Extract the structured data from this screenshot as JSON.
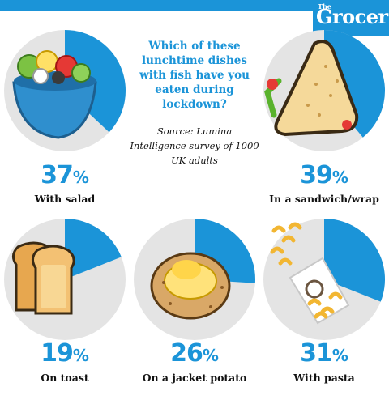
{
  "brand": {
    "the": "The",
    "name": "Grocer"
  },
  "question": "Which of these lunchtime dishes with fish have you eaten during lockdown?",
  "source": "Source: Lumina Intelligence survey of 1000 UK adults",
  "colors": {
    "accent": "#1b94d8",
    "track": "#e4e4e4"
  },
  "chart_data": {
    "type": "pie",
    "title": "Which of these lunchtime dishes with fish have you eaten during lockdown?",
    "unit": "%",
    "categories": [
      "With salad",
      "In a sandwich/wrap",
      "On toast",
      "On a jacket potato",
      "With pasta"
    ],
    "values": [
      37,
      39,
      19,
      26,
      31
    ],
    "icons": [
      "salad-bowl-icon",
      "sandwich-icon",
      "toast-icon",
      "jacket-potato-icon",
      "pasta-icon"
    ]
  }
}
